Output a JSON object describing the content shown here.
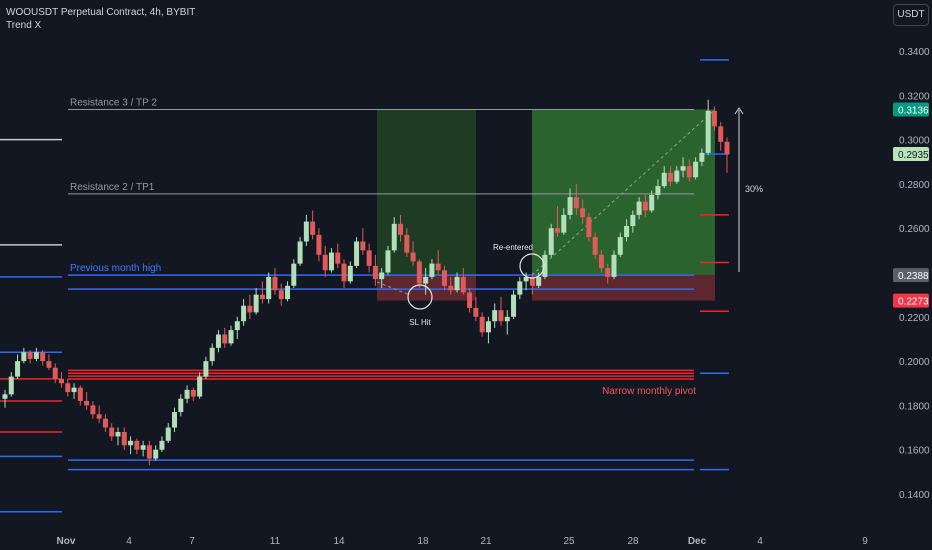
{
  "header": {
    "symbol": "WOOUSDT Perpetual Contract, 4h, BYBIT",
    "indicator": "Trend X"
  },
  "currency_button": "USDT",
  "colors": {
    "background": "#131722",
    "bull": "#b2dfb8",
    "bear": "#e05a5a",
    "blue_line": "#2e6cf5",
    "red_line": "#f0262d",
    "gray_line": "#9598a1",
    "profit_zone": "#2e6b30",
    "loss_zone": "#6b2a32"
  },
  "chart_data": {
    "type": "candlestick",
    "ylim": [
      0.13,
      0.35
    ],
    "y_ticks": [
      "0.1400",
      "0.1600",
      "0.1800",
      "0.2000",
      "0.2200",
      "0.2400",
      "0.2600",
      "0.2800",
      "0.3000",
      "0.3200",
      "0.3400"
    ],
    "x_ticks": [
      "Nov",
      "4",
      "7",
      "11",
      "14",
      "18",
      "21",
      "25",
      "28",
      "Dec",
      "4",
      "9"
    ],
    "price_labels": [
      {
        "text": "0.3136",
        "value": 0.3136,
        "style": "green"
      },
      {
        "text": "0.2935",
        "value": 0.2935,
        "style": "lightgreen"
      },
      {
        "text": "0.2388",
        "value": 0.2388,
        "style": "gray"
      },
      {
        "text": "0.2273",
        "value": 0.2273,
        "style": "red"
      }
    ],
    "levels": [
      {
        "label": "Resistance 3 / TP 2",
        "value": 0.3136,
        "kind": "gray"
      },
      {
        "label": "Resistance 2 / TP1",
        "value": 0.2755,
        "kind": "gray"
      },
      {
        "label": "Previous month high",
        "value": 0.2388,
        "kind": "blue"
      },
      {
        "label": "Narrow monthly pivot",
        "value": 0.1945,
        "kind": "red"
      }
    ],
    "annotations": [
      "SL Hit",
      "Re-entered",
      "30%"
    ],
    "candles": [
      [
        0.183,
        0.187,
        0.179,
        0.185
      ],
      [
        0.185,
        0.195,
        0.184,
        0.193
      ],
      [
        0.193,
        0.203,
        0.192,
        0.2
      ],
      [
        0.2,
        0.206,
        0.199,
        0.204
      ],
      [
        0.204,
        0.205,
        0.199,
        0.201
      ],
      [
        0.201,
        0.206,
        0.2,
        0.204
      ],
      [
        0.204,
        0.205,
        0.198,
        0.2
      ],
      [
        0.2,
        0.203,
        0.196,
        0.197
      ],
      [
        0.197,
        0.199,
        0.19,
        0.192
      ],
      [
        0.192,
        0.195,
        0.188,
        0.19
      ],
      [
        0.19,
        0.192,
        0.184,
        0.186
      ],
      [
        0.186,
        0.19,
        0.183,
        0.188
      ],
      [
        0.188,
        0.189,
        0.18,
        0.182
      ],
      [
        0.182,
        0.186,
        0.178,
        0.18
      ],
      [
        0.18,
        0.182,
        0.174,
        0.176
      ],
      [
        0.176,
        0.18,
        0.172,
        0.174
      ],
      [
        0.174,
        0.176,
        0.168,
        0.17
      ],
      [
        0.17,
        0.172,
        0.164,
        0.166
      ],
      [
        0.166,
        0.17,
        0.162,
        0.168
      ],
      [
        0.168,
        0.17,
        0.16,
        0.162
      ],
      [
        0.162,
        0.166,
        0.158,
        0.164
      ],
      [
        0.164,
        0.165,
        0.158,
        0.16
      ],
      [
        0.16,
        0.164,
        0.157,
        0.162
      ],
      [
        0.162,
        0.164,
        0.153,
        0.156
      ],
      [
        0.156,
        0.162,
        0.155,
        0.16
      ],
      [
        0.16,
        0.166,
        0.159,
        0.164
      ],
      [
        0.164,
        0.172,
        0.163,
        0.17
      ],
      [
        0.17,
        0.179,
        0.168,
        0.177
      ],
      [
        0.177,
        0.185,
        0.175,
        0.183
      ],
      [
        0.183,
        0.189,
        0.181,
        0.187
      ],
      [
        0.187,
        0.188,
        0.182,
        0.184
      ],
      [
        0.184,
        0.195,
        0.183,
        0.193
      ],
      [
        0.193,
        0.202,
        0.192,
        0.2
      ],
      [
        0.2,
        0.208,
        0.198,
        0.206
      ],
      [
        0.206,
        0.214,
        0.204,
        0.212
      ],
      [
        0.212,
        0.215,
        0.206,
        0.208
      ],
      [
        0.208,
        0.216,
        0.207,
        0.214
      ],
      [
        0.214,
        0.22,
        0.21,
        0.218
      ],
      [
        0.218,
        0.228,
        0.216,
        0.225
      ],
      [
        0.225,
        0.23,
        0.219,
        0.222
      ],
      [
        0.222,
        0.233,
        0.221,
        0.23
      ],
      [
        0.23,
        0.236,
        0.226,
        0.228
      ],
      [
        0.228,
        0.24,
        0.226,
        0.238
      ],
      [
        0.238,
        0.242,
        0.23,
        0.232
      ],
      [
        0.232,
        0.235,
        0.225,
        0.228
      ],
      [
        0.228,
        0.236,
        0.227,
        0.234
      ],
      [
        0.234,
        0.246,
        0.233,
        0.244
      ],
      [
        0.244,
        0.256,
        0.243,
        0.254
      ],
      [
        0.254,
        0.266,
        0.252,
        0.263
      ],
      [
        0.263,
        0.268,
        0.255,
        0.257
      ],
      [
        0.257,
        0.26,
        0.245,
        0.248
      ],
      [
        0.248,
        0.252,
        0.238,
        0.241
      ],
      [
        0.241,
        0.251,
        0.24,
        0.249
      ],
      [
        0.249,
        0.253,
        0.242,
        0.244
      ],
      [
        0.244,
        0.246,
        0.233,
        0.236
      ],
      [
        0.236,
        0.245,
        0.235,
        0.243
      ],
      [
        0.243,
        0.256,
        0.242,
        0.254
      ],
      [
        0.254,
        0.26,
        0.248,
        0.25
      ],
      [
        0.25,
        0.253,
        0.24,
        0.243
      ],
      [
        0.243,
        0.248,
        0.234,
        0.237
      ],
      [
        0.237,
        0.242,
        0.233,
        0.24
      ],
      [
        0.24,
        0.252,
        0.239,
        0.25
      ],
      [
        0.25,
        0.265,
        0.249,
        0.262
      ],
      [
        0.262,
        0.266,
        0.254,
        0.257
      ],
      [
        0.257,
        0.26,
        0.247,
        0.249
      ],
      [
        0.249,
        0.254,
        0.243,
        0.245
      ],
      [
        0.245,
        0.246,
        0.233,
        0.235
      ],
      [
        0.235,
        0.242,
        0.23,
        0.238
      ],
      [
        0.238,
        0.246,
        0.237,
        0.244
      ],
      [
        0.244,
        0.25,
        0.239,
        0.241
      ],
      [
        0.241,
        0.243,
        0.232,
        0.234
      ],
      [
        0.234,
        0.238,
        0.23,
        0.232
      ],
      [
        0.232,
        0.24,
        0.231,
        0.238
      ],
      [
        0.238,
        0.242,
        0.23,
        0.231
      ],
      [
        0.231,
        0.233,
        0.222,
        0.224
      ],
      [
        0.224,
        0.229,
        0.218,
        0.22
      ],
      [
        0.22,
        0.222,
        0.211,
        0.213
      ],
      [
        0.213,
        0.22,
        0.208,
        0.218
      ],
      [
        0.218,
        0.226,
        0.215,
        0.223
      ],
      [
        0.223,
        0.229,
        0.216,
        0.218
      ],
      [
        0.218,
        0.223,
        0.212,
        0.22
      ],
      [
        0.22,
        0.232,
        0.219,
        0.23
      ],
      [
        0.23,
        0.238,
        0.228,
        0.236
      ],
      [
        0.236,
        0.24,
        0.232,
        0.238
      ],
      [
        0.238,
        0.24,
        0.23,
        0.234
      ],
      [
        0.234,
        0.24,
        0.233,
        0.238
      ],
      [
        0.238,
        0.25,
        0.237,
        0.248
      ],
      [
        0.248,
        0.262,
        0.247,
        0.26
      ],
      [
        0.26,
        0.27,
        0.256,
        0.258
      ],
      [
        0.258,
        0.269,
        0.257,
        0.266
      ],
      [
        0.266,
        0.278,
        0.264,
        0.274
      ],
      [
        0.274,
        0.28,
        0.266,
        0.269
      ],
      [
        0.269,
        0.273,
        0.262,
        0.265
      ],
      [
        0.265,
        0.267,
        0.254,
        0.256
      ],
      [
        0.256,
        0.258,
        0.246,
        0.248
      ],
      [
        0.248,
        0.25,
        0.24,
        0.242
      ],
      [
        0.242,
        0.244,
        0.235,
        0.238
      ],
      [
        0.238,
        0.25,
        0.237,
        0.248
      ],
      [
        0.248,
        0.258,
        0.247,
        0.256
      ],
      [
        0.256,
        0.264,
        0.254,
        0.261
      ],
      [
        0.261,
        0.268,
        0.258,
        0.266
      ],
      [
        0.266,
        0.274,
        0.264,
        0.272
      ],
      [
        0.272,
        0.275,
        0.265,
        0.268
      ],
      [
        0.268,
        0.277,
        0.267,
        0.275
      ],
      [
        0.275,
        0.282,
        0.273,
        0.279
      ],
      [
        0.279,
        0.288,
        0.278,
        0.285
      ],
      [
        0.285,
        0.288,
        0.279,
        0.281
      ],
      [
        0.281,
        0.288,
        0.28,
        0.286
      ],
      [
        0.286,
        0.292,
        0.283,
        0.288
      ],
      [
        0.288,
        0.291,
        0.281,
        0.283
      ],
      [
        0.283,
        0.292,
        0.282,
        0.29
      ],
      [
        0.29,
        0.296,
        0.288,
        0.294
      ],
      [
        0.294,
        0.318,
        0.293,
        0.313
      ],
      [
        0.313,
        0.315,
        0.304,
        0.306
      ],
      [
        0.306,
        0.308,
        0.295,
        0.299
      ],
      [
        0.299,
        0.301,
        0.285,
        0.2935
      ]
    ]
  }
}
